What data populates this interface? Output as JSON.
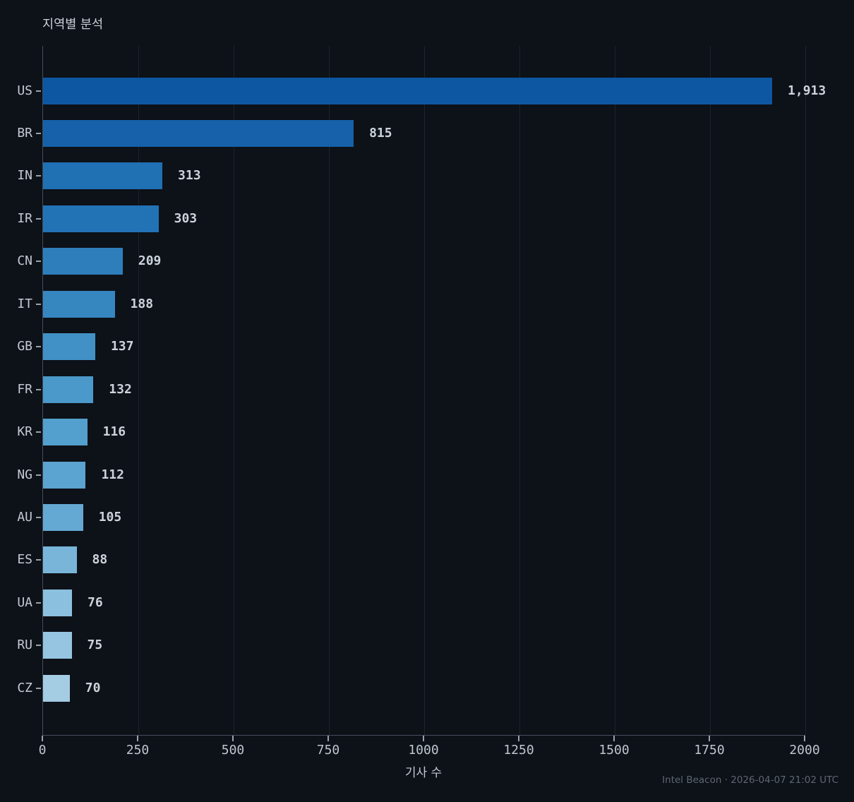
{
  "title": "지역별 분석",
  "footer": "Intel Beacon · 2026-04-07 21:02 UTC",
  "colors": {
    "background": "#0d1118",
    "gridline": "#1c2431",
    "spine": "#454e5b",
    "tick_mark": "#99a2ad",
    "title_text": "#cbd2d9",
    "label_text": "#c3cad2",
    "value_text": "#ccd3da",
    "footer_text": "#5e6773"
  },
  "chart_data": {
    "type": "bar",
    "orientation": "horizontal",
    "title": "지역별 분석",
    "xlabel": "기사 수",
    "ylabel": "",
    "categories": [
      "US",
      "BR",
      "IN",
      "IR",
      "CN",
      "IT",
      "GB",
      "FR",
      "KR",
      "NG",
      "AU",
      "ES",
      "UA",
      "RU",
      "CZ"
    ],
    "values": [
      1913,
      815,
      313,
      303,
      209,
      188,
      137,
      132,
      116,
      112,
      105,
      88,
      76,
      75,
      70
    ],
    "value_labels": [
      "1,913",
      "815",
      "313",
      "303",
      "209",
      "188",
      "137",
      "132",
      "116",
      "112",
      "105",
      "88",
      "76",
      "75",
      "70"
    ],
    "bar_colors": [
      "#0d57a2",
      "#1661a9",
      "#2070b4",
      "#2272b6",
      "#2e7ebc",
      "#3686c0",
      "#4191c6",
      "#4b98ca",
      "#539fcd",
      "#5ba3d0",
      "#64a9d3",
      "#79b5d9",
      "#8bc0de",
      "#95c5e1",
      "#a4cce3"
    ],
    "xlim": [
      0,
      2000
    ],
    "x_ticks": [
      0,
      250,
      500,
      750,
      1000,
      1250,
      1500,
      1750,
      2000
    ],
    "grid": "vertical",
    "legend": "none"
  }
}
